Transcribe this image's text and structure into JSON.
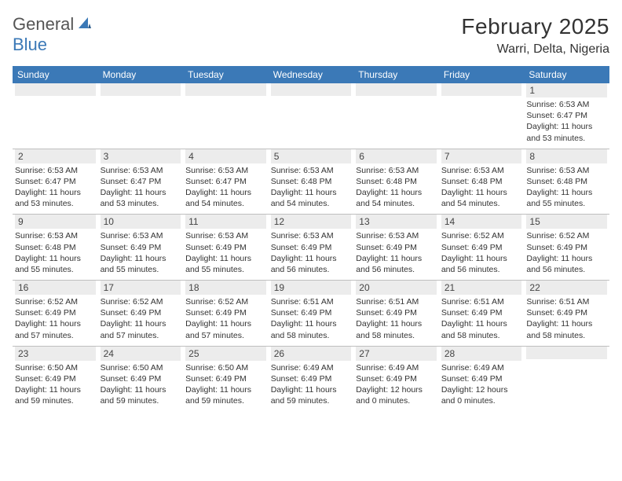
{
  "logo": {
    "text1": "General",
    "text2": "Blue",
    "text1_color": "#555555",
    "text2_color": "#3b79b7",
    "icon_color": "#3b79b7"
  },
  "title": "February 2025",
  "location": "Warri, Delta, Nigeria",
  "colors": {
    "header_bg": "#3b79b7",
    "header_text": "#ffffff",
    "daynum_bg": "#ececec",
    "border": "#bfbfbf",
    "body_text": "#333333"
  },
  "typography": {
    "title_fontsize": 28,
    "location_fontsize": 16,
    "weekday_fontsize": 12,
    "daynum_fontsize": 12,
    "body_fontsize": 10.5
  },
  "weekdays": [
    "Sunday",
    "Monday",
    "Tuesday",
    "Wednesday",
    "Thursday",
    "Friday",
    "Saturday"
  ],
  "weeks": [
    [
      {
        "n": "",
        "sr": "",
        "ss": "",
        "dl": ""
      },
      {
        "n": "",
        "sr": "",
        "ss": "",
        "dl": ""
      },
      {
        "n": "",
        "sr": "",
        "ss": "",
        "dl": ""
      },
      {
        "n": "",
        "sr": "",
        "ss": "",
        "dl": ""
      },
      {
        "n": "",
        "sr": "",
        "ss": "",
        "dl": ""
      },
      {
        "n": "",
        "sr": "",
        "ss": "",
        "dl": ""
      },
      {
        "n": "1",
        "sr": "Sunrise: 6:53 AM",
        "ss": "Sunset: 6:47 PM",
        "dl": "Daylight: 11 hours and 53 minutes."
      }
    ],
    [
      {
        "n": "2",
        "sr": "Sunrise: 6:53 AM",
        "ss": "Sunset: 6:47 PM",
        "dl": "Daylight: 11 hours and 53 minutes."
      },
      {
        "n": "3",
        "sr": "Sunrise: 6:53 AM",
        "ss": "Sunset: 6:47 PM",
        "dl": "Daylight: 11 hours and 53 minutes."
      },
      {
        "n": "4",
        "sr": "Sunrise: 6:53 AM",
        "ss": "Sunset: 6:47 PM",
        "dl": "Daylight: 11 hours and 54 minutes."
      },
      {
        "n": "5",
        "sr": "Sunrise: 6:53 AM",
        "ss": "Sunset: 6:48 PM",
        "dl": "Daylight: 11 hours and 54 minutes."
      },
      {
        "n": "6",
        "sr": "Sunrise: 6:53 AM",
        "ss": "Sunset: 6:48 PM",
        "dl": "Daylight: 11 hours and 54 minutes."
      },
      {
        "n": "7",
        "sr": "Sunrise: 6:53 AM",
        "ss": "Sunset: 6:48 PM",
        "dl": "Daylight: 11 hours and 54 minutes."
      },
      {
        "n": "8",
        "sr": "Sunrise: 6:53 AM",
        "ss": "Sunset: 6:48 PM",
        "dl": "Daylight: 11 hours and 55 minutes."
      }
    ],
    [
      {
        "n": "9",
        "sr": "Sunrise: 6:53 AM",
        "ss": "Sunset: 6:48 PM",
        "dl": "Daylight: 11 hours and 55 minutes."
      },
      {
        "n": "10",
        "sr": "Sunrise: 6:53 AM",
        "ss": "Sunset: 6:49 PM",
        "dl": "Daylight: 11 hours and 55 minutes."
      },
      {
        "n": "11",
        "sr": "Sunrise: 6:53 AM",
        "ss": "Sunset: 6:49 PM",
        "dl": "Daylight: 11 hours and 55 minutes."
      },
      {
        "n": "12",
        "sr": "Sunrise: 6:53 AM",
        "ss": "Sunset: 6:49 PM",
        "dl": "Daylight: 11 hours and 56 minutes."
      },
      {
        "n": "13",
        "sr": "Sunrise: 6:53 AM",
        "ss": "Sunset: 6:49 PM",
        "dl": "Daylight: 11 hours and 56 minutes."
      },
      {
        "n": "14",
        "sr": "Sunrise: 6:52 AM",
        "ss": "Sunset: 6:49 PM",
        "dl": "Daylight: 11 hours and 56 minutes."
      },
      {
        "n": "15",
        "sr": "Sunrise: 6:52 AM",
        "ss": "Sunset: 6:49 PM",
        "dl": "Daylight: 11 hours and 56 minutes."
      }
    ],
    [
      {
        "n": "16",
        "sr": "Sunrise: 6:52 AM",
        "ss": "Sunset: 6:49 PM",
        "dl": "Daylight: 11 hours and 57 minutes."
      },
      {
        "n": "17",
        "sr": "Sunrise: 6:52 AM",
        "ss": "Sunset: 6:49 PM",
        "dl": "Daylight: 11 hours and 57 minutes."
      },
      {
        "n": "18",
        "sr": "Sunrise: 6:52 AM",
        "ss": "Sunset: 6:49 PM",
        "dl": "Daylight: 11 hours and 57 minutes."
      },
      {
        "n": "19",
        "sr": "Sunrise: 6:51 AM",
        "ss": "Sunset: 6:49 PM",
        "dl": "Daylight: 11 hours and 58 minutes."
      },
      {
        "n": "20",
        "sr": "Sunrise: 6:51 AM",
        "ss": "Sunset: 6:49 PM",
        "dl": "Daylight: 11 hours and 58 minutes."
      },
      {
        "n": "21",
        "sr": "Sunrise: 6:51 AM",
        "ss": "Sunset: 6:49 PM",
        "dl": "Daylight: 11 hours and 58 minutes."
      },
      {
        "n": "22",
        "sr": "Sunrise: 6:51 AM",
        "ss": "Sunset: 6:49 PM",
        "dl": "Daylight: 11 hours and 58 minutes."
      }
    ],
    [
      {
        "n": "23",
        "sr": "Sunrise: 6:50 AM",
        "ss": "Sunset: 6:49 PM",
        "dl": "Daylight: 11 hours and 59 minutes."
      },
      {
        "n": "24",
        "sr": "Sunrise: 6:50 AM",
        "ss": "Sunset: 6:49 PM",
        "dl": "Daylight: 11 hours and 59 minutes."
      },
      {
        "n": "25",
        "sr": "Sunrise: 6:50 AM",
        "ss": "Sunset: 6:49 PM",
        "dl": "Daylight: 11 hours and 59 minutes."
      },
      {
        "n": "26",
        "sr": "Sunrise: 6:49 AM",
        "ss": "Sunset: 6:49 PM",
        "dl": "Daylight: 11 hours and 59 minutes."
      },
      {
        "n": "27",
        "sr": "Sunrise: 6:49 AM",
        "ss": "Sunset: 6:49 PM",
        "dl": "Daylight: 12 hours and 0 minutes."
      },
      {
        "n": "28",
        "sr": "Sunrise: 6:49 AM",
        "ss": "Sunset: 6:49 PM",
        "dl": "Daylight: 12 hours and 0 minutes."
      },
      {
        "n": "",
        "sr": "",
        "ss": "",
        "dl": ""
      }
    ]
  ]
}
